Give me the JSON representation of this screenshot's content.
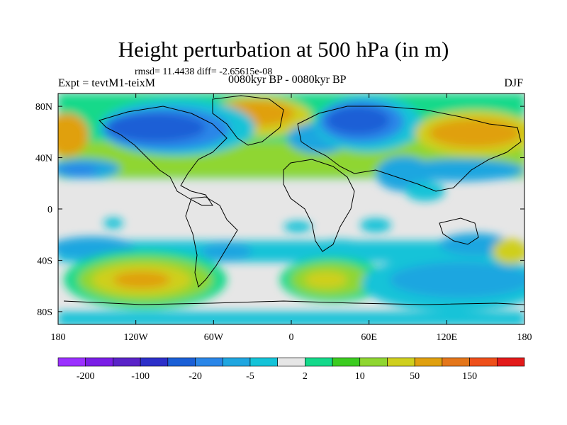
{
  "title": "Height perturbation at 500 hPa (in m)",
  "stats_line": "rmsd= 11.4438 diff= -2.65615e-08",
  "experiment": "Expt = tevtM1-teixM",
  "period": "0080kyr BP - 0080kyr BP",
  "season": "DJF",
  "map": {
    "lat_ticks": [
      "80N",
      "40N",
      "0",
      "40S",
      "80S"
    ],
    "lon_ticks": [
      "180",
      "120W",
      "60W",
      "0",
      "60E",
      "120E",
      "180"
    ]
  },
  "colorbar": {
    "colors": [
      "#9b30ff",
      "#7a1ee6",
      "#5a23c8",
      "#2c2fc9",
      "#1a5fd6",
      "#2a86e8",
      "#1fa6e0",
      "#14c3d8",
      "#e6e6e6",
      "#14d98a",
      "#3ccc20",
      "#8fd630",
      "#cfcf1e",
      "#e0a00f",
      "#e4761a",
      "#ee4f1a",
      "#e31a1a"
    ],
    "labels": [
      "-200",
      "-100",
      "-20",
      "-5",
      "2",
      "10",
      "50",
      "150"
    ],
    "label_positions": [
      1,
      3,
      5,
      7,
      9,
      11,
      13,
      15
    ]
  }
}
